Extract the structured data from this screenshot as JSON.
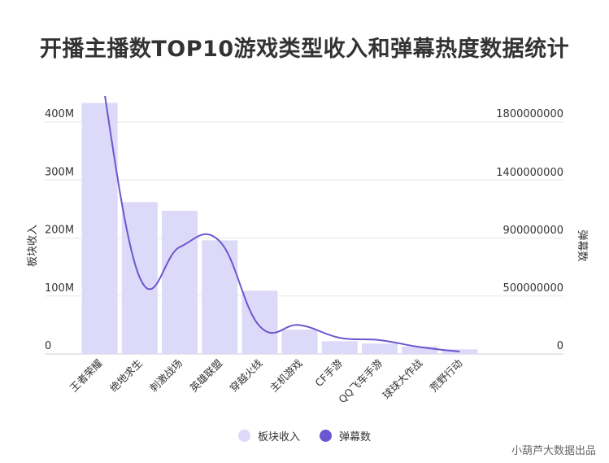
{
  "chart_title": "开播主播数TOP10游戏类型收入和弹幕热度数据统计",
  "source_note": "小葫芦大数据出品",
  "colors": {
    "bar": "#dcdaf8",
    "line": "#6c56cf",
    "grid": "#e6e6e6",
    "text": "#333333"
  },
  "chart_data": {
    "type": "bar+line",
    "title": "开播主播数TOP10游戏类型收入和弹幕热度数据统计",
    "categories": [
      "王者荣耀",
      "绝地求生",
      "刺激战场",
      "英雄联盟",
      "穿越火线",
      "主机游戏",
      "CF手游",
      "QQ飞车手游",
      "球球大作战",
      "荒野行动"
    ],
    "series": [
      {
        "name": "板块收入",
        "type": "bar",
        "axis": "left",
        "values": [
          433000000,
          262000000,
          247000000,
          196000000,
          109000000,
          42000000,
          22000000,
          18000000,
          13000000,
          8000000
        ]
      },
      {
        "name": "弹幕数",
        "type": "line",
        "axis": "right",
        "values": [
          2200000000,
          630000000,
          840000000,
          880000000,
          240000000,
          250000000,
          140000000,
          120000000,
          60000000,
          20000000
        ]
      }
    ],
    "left_axis": {
      "label": "板块收入",
      "ticks": [
        0,
        100000000,
        200000000,
        300000000,
        400000000
      ],
      "tick_labels": [
        "0",
        "100M",
        "200M",
        "300M",
        "400M"
      ],
      "range": [
        0,
        400000000
      ]
    },
    "right_axis": {
      "label": "弹幕数",
      "ticks": [
        0,
        500000000,
        900000000,
        1400000000,
        1800000000
      ],
      "tick_labels": [
        "0",
        "500000000",
        "900000000",
        "1400000000",
        "1800000000"
      ],
      "range": [
        0,
        1800000000
      ]
    },
    "grid": true,
    "legend_position": "bottom"
  },
  "legend": [
    {
      "label": "板块收入",
      "color": "#dcdaf8"
    },
    {
      "label": "弹幕数",
      "color": "#6c56cf"
    }
  ]
}
